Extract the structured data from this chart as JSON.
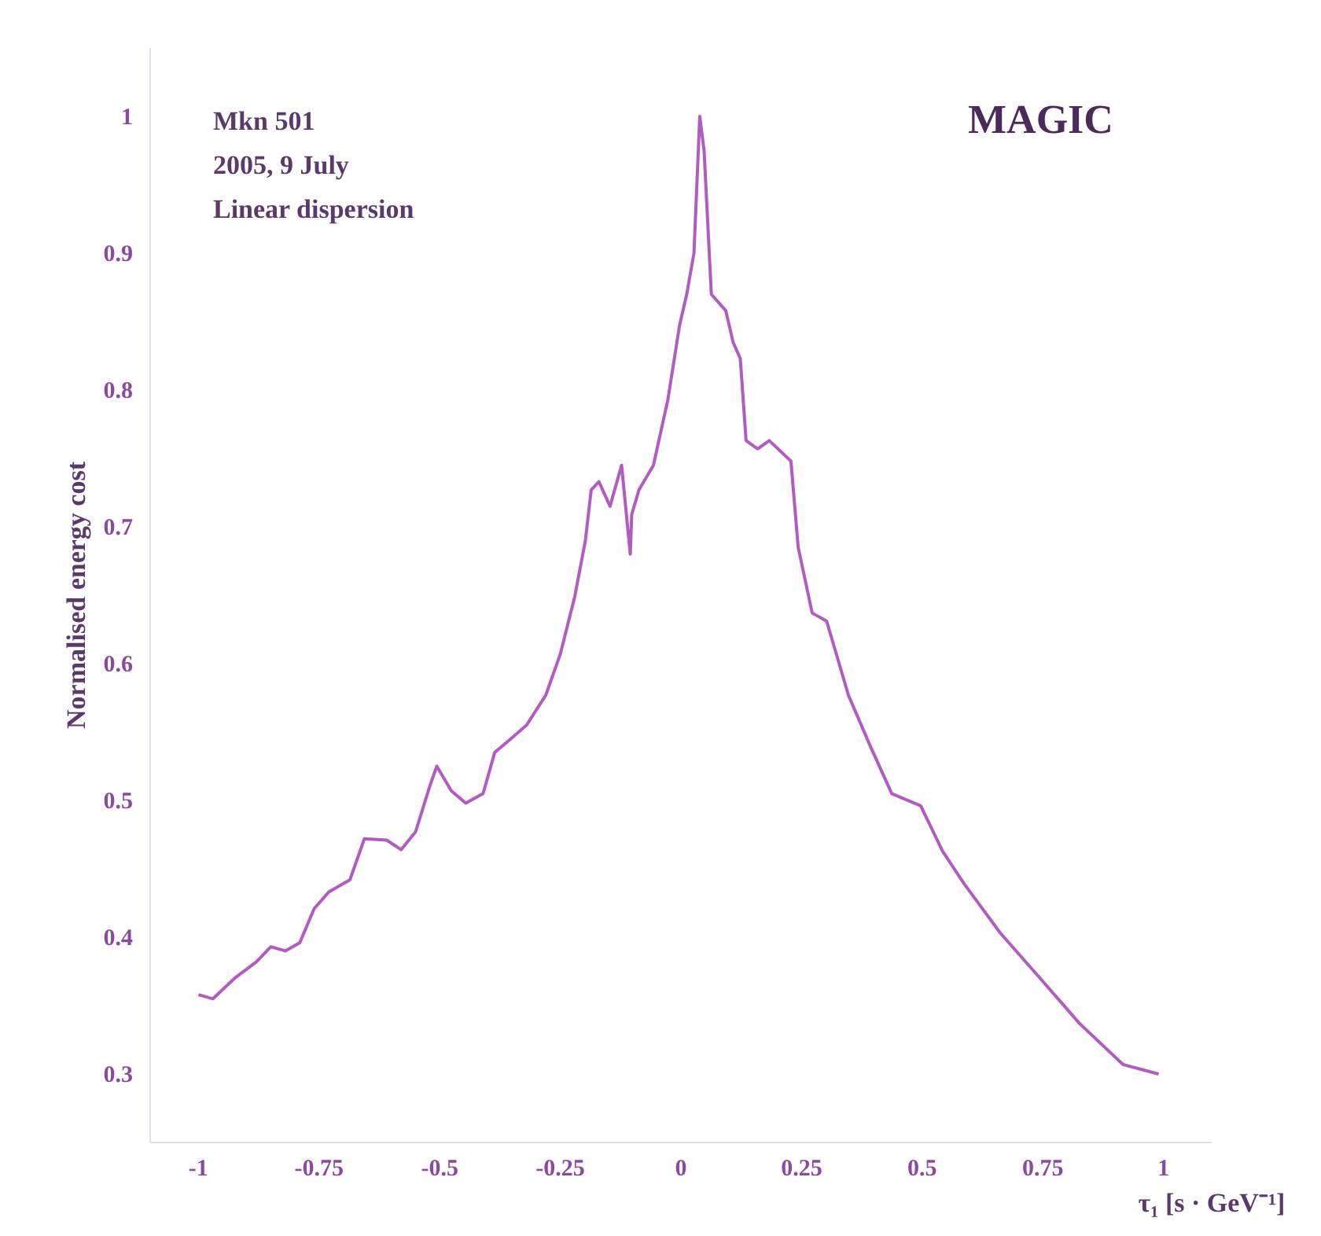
{
  "chart_data": {
    "type": "line",
    "xlabel": "τ₁ [s · GeV⁻¹]",
    "ylabel": "Normalised energy cost",
    "annotations": [
      "Mkn 501",
      "2005, 9 July",
      "Linear dispersion",
      "MAGIC"
    ],
    "xlim": [
      -1.1,
      1.1
    ],
    "ylim": [
      0.25,
      1.05
    ],
    "xticks": [
      -1,
      -0.75,
      -0.5,
      -0.25,
      0,
      0.25,
      0.5,
      0.75,
      1
    ],
    "yticks": [
      0.3,
      0.4,
      0.5,
      0.6,
      0.7,
      0.8,
      0.9,
      1
    ],
    "grid": false,
    "marker": "none",
    "line_style": "solid",
    "series": [
      {
        "color": "#b05cc0",
        "x": [
          -1,
          -0.97,
          -0.925,
          -0.88,
          -0.85,
          -0.82,
          -0.79,
          -0.76,
          -0.73,
          -0.686,
          -0.656,
          -0.61,
          -0.58,
          -0.55,
          -0.52,
          -0.506,
          -0.476,
          -0.446,
          -0.41,
          -0.386,
          -0.356,
          -0.32,
          -0.28,
          -0.25,
          -0.22,
          -0.198,
          -0.186,
          -0.17,
          -0.147,
          -0.123,
          -0.105,
          -0.102,
          -0.087,
          -0.057,
          -0.027,
          -0.003,
          0.012,
          0.027,
          0.039,
          0.048,
          0.063,
          0.093,
          0.108,
          0.123,
          0.135,
          0.159,
          0.183,
          0.228,
          0.243,
          0.272,
          0.302,
          0.347,
          0.392,
          0.437,
          0.497,
          0.542,
          0.587,
          0.662,
          0.737,
          0.826,
          0.916,
          0.99
        ],
        "values": [
          0.358,
          0.355,
          0.37,
          0.382,
          0.393,
          0.39,
          0.396,
          0.421,
          0.433,
          0.442,
          0.472,
          0.471,
          0.464,
          0.477,
          0.511,
          0.525,
          0.507,
          0.498,
          0.505,
          0.535,
          0.544,
          0.555,
          0.577,
          0.607,
          0.649,
          0.69,
          0.727,
          0.733,
          0.715,
          0.745,
          0.68,
          0.709,
          0.727,
          0.745,
          0.793,
          0.847,
          0.87,
          0.9,
          1.0,
          0.975,
          0.87,
          0.858,
          0.835,
          0.823,
          0.763,
          0.757,
          0.763,
          0.748,
          0.685,
          0.637,
          0.631,
          0.577,
          0.54,
          0.505,
          0.496,
          0.463,
          0.439,
          0.403,
          0.373,
          0.337,
          0.307,
          0.3
        ]
      }
    ]
  }
}
